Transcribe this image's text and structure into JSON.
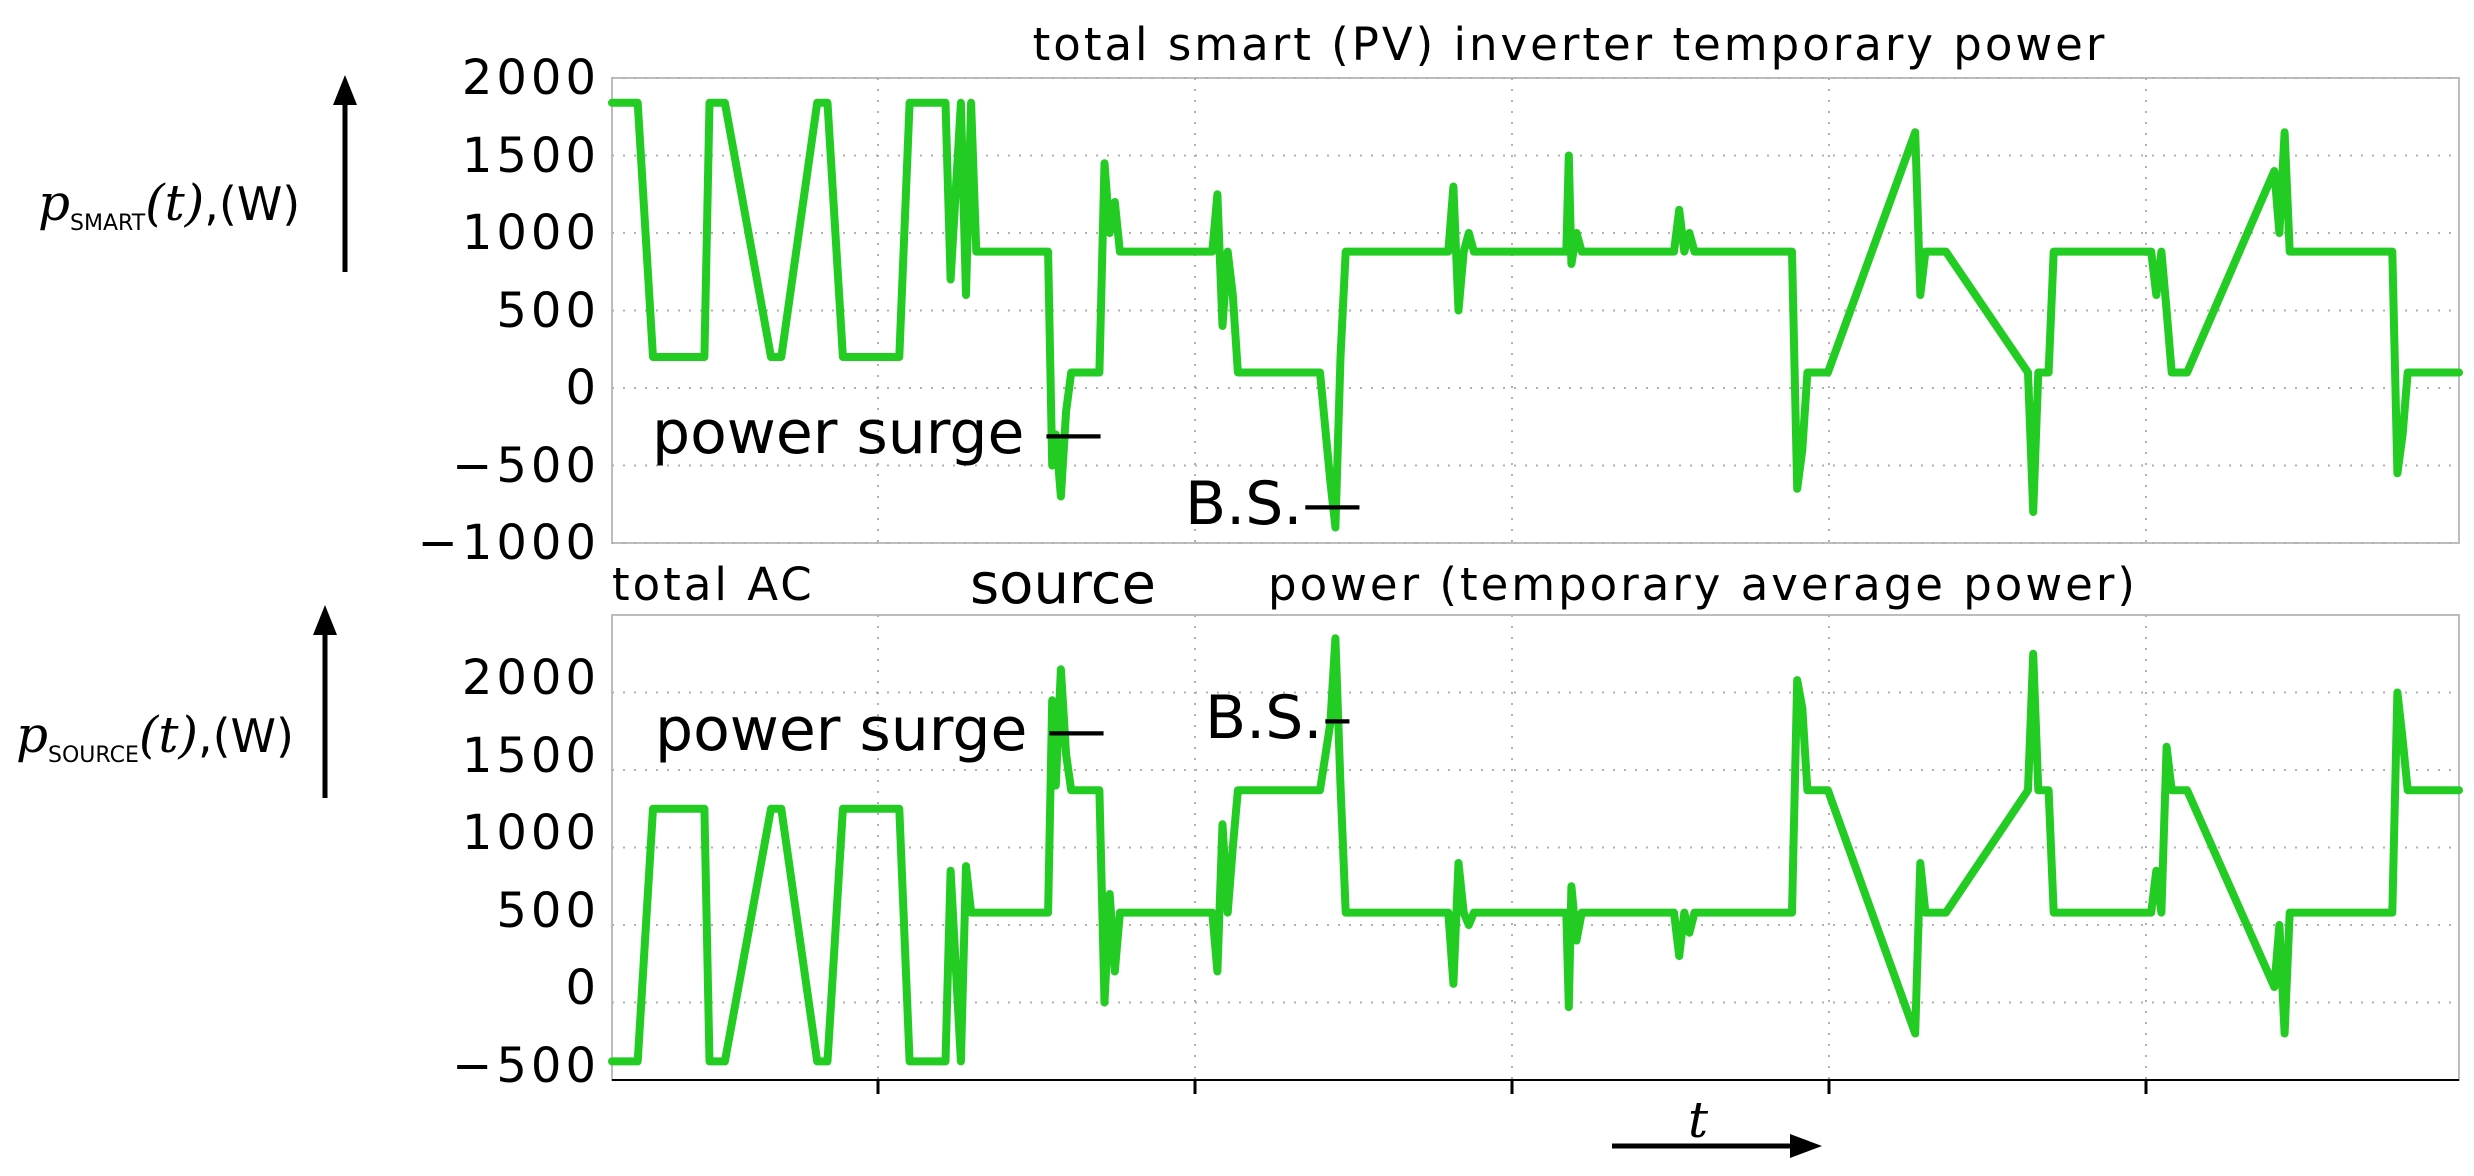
{
  "colors": {
    "trace": "#22cc22",
    "frame": "#bdbdbd",
    "grid": "#b0b0b0",
    "text": "#000000"
  },
  "chart_data": [
    {
      "type": "line",
      "title": "total smart (PV) inverter temporary power",
      "ylabel": {
        "symbol": "p",
        "subscript": "SMART",
        "arg": "(t)",
        "unit": ",(W)"
      },
      "ylim": [
        -1000,
        2000
      ],
      "yticks": [
        2000,
        1500,
        1000,
        500,
        0,
        -500,
        -1000
      ],
      "tick_labels": [
        "2000",
        "1500",
        "1000",
        "500",
        "0",
        "−500",
        "−1000"
      ],
      "xlim": [
        0,
        36
      ],
      "grid": true,
      "annotations": [
        {
          "text": "power surge —",
          "x": 6.9,
          "y": -300
        },
        {
          "text": "B.S.—",
          "x": 9.0,
          "y": -780
        }
      ],
      "series": [
        {
          "x": [
            0,
            0.5,
            0.8,
            1.8,
            1.9,
            2.2,
            3.1,
            3.3,
            4.0,
            4.2,
            4.5,
            5.6,
            5.8,
            6.5,
            6.6,
            6.8,
            6.9,
            7.0,
            7.1,
            7.25,
            7.4,
            7.6,
            8.5,
            8.58,
            8.65,
            8.75,
            8.85,
            8.95,
            9.1,
            9.5,
            9.6,
            9.7,
            9.8,
            9.9,
            10.0,
            10.1,
            11.7,
            11.8,
            11.9,
            12.0,
            12.1,
            12.2,
            12.3,
            13.8,
            14.0,
            14.1,
            14.2,
            14.3,
            14.5,
            14.7,
            16.3,
            16.4,
            16.5,
            16.6,
            16.7,
            16.8,
            17.0,
            18.6,
            18.65,
            18.7,
            18.8,
            18.9,
            19.1,
            20.7,
            20.8,
            20.9,
            21.0,
            21.1,
            21.2,
            21.4,
            23.0,
            23.1,
            23.2,
            23.3,
            23.4,
            23.5,
            23.7,
            25.4,
            25.5,
            25.6,
            25.7,
            25.8,
            26.0,
            27.6,
            27.7,
            27.8,
            27.9,
            28.0,
            28.1,
            28.2,
            30.0,
            30.1,
            30.2,
            30.3,
            30.4,
            30.5,
            30.7,
            32.4,
            32.5,
            32.6,
            32.7,
            32.8,
            33.0,
            34.7,
            34.8,
            34.9,
            35.0,
            35.1,
            35.2,
            35.4,
            36.0
          ],
          "y": [
            1840,
            1840,
            200,
            200,
            1840,
            1840,
            200,
            200,
            1840,
            1840,
            200,
            200,
            1840,
            1840,
            700,
            1840,
            600,
            1840,
            880,
            880,
            880,
            880,
            880,
            -500,
            -300,
            -700,
            -150,
            100,
            100,
            100,
            1450,
            1000,
            1200,
            880,
            880,
            880,
            880,
            1250,
            400,
            880,
            600,
            100,
            100,
            100,
            -600,
            -900,
            200,
            880,
            880,
            880,
            880,
            1300,
            500,
            880,
            1000,
            880,
            880,
            880,
            1500,
            800,
            1000,
            880,
            880,
            880,
            1150,
            880,
            1000,
            880,
            880,
            880,
            880,
            -650,
            -400,
            100,
            100,
            100,
            100,
            1650,
            600,
            880,
            880,
            880,
            880,
            100,
            -800,
            100,
            100,
            100,
            880,
            880,
            880,
            600,
            880,
            500,
            100,
            100,
            100,
            1400,
            1000,
            1650,
            880,
            880,
            880,
            880,
            -550,
            -300,
            100,
            100,
            100,
            100,
            100
          ],
          "note": "",
          "name": ""
        }
      ]
    },
    {
      "type": "line",
      "title_parts": [
        "total AC",
        "source",
        "power (temporary average power)"
      ],
      "ylabel": {
        "symbol": "p",
        "subscript": "SOURCE",
        "arg": "(t)",
        "unit": ",(W)"
      },
      "ylim": [
        -500,
        2500
      ],
      "yticks": [
        2000,
        1500,
        1000,
        500,
        0,
        -500
      ],
      "tick_labels": [
        "2000",
        "1500",
        "1000",
        "500",
        "0",
        "−500"
      ],
      "xlim": [
        0,
        36
      ],
      "grid": true,
      "xlabel": "t",
      "annotations": [
        {
          "text": "power surge —",
          "x": 6.9,
          "y": 1700
        },
        {
          "text": "B.S.–",
          "x": 9.0,
          "y": 1780
        }
      ],
      "series": [
        {
          "x": [
            0,
            0.5,
            0.8,
            1.8,
            1.9,
            2.2,
            3.1,
            3.3,
            4.0,
            4.2,
            4.5,
            5.6,
            5.8,
            6.5,
            6.6,
            6.8,
            6.9,
            7.0,
            7.1,
            7.25,
            7.4,
            7.6,
            8.5,
            8.58,
            8.65,
            8.75,
            8.85,
            8.95,
            9.1,
            9.5,
            9.6,
            9.7,
            9.8,
            9.9,
            10.0,
            10.1,
            11.7,
            11.8,
            11.9,
            12.0,
            12.1,
            12.2,
            12.3,
            13.8,
            14.0,
            14.1,
            14.2,
            14.3,
            14.5,
            14.7,
            16.3,
            16.4,
            16.5,
            16.6,
            16.7,
            16.8,
            17.0,
            18.6,
            18.65,
            18.7,
            18.8,
            18.9,
            19.1,
            20.7,
            20.8,
            20.9,
            21.0,
            21.1,
            21.2,
            21.4,
            23.0,
            23.1,
            23.2,
            23.3,
            23.4,
            23.5,
            23.7,
            25.4,
            25.5,
            25.6,
            25.7,
            25.8,
            26.0,
            27.6,
            27.7,
            27.8,
            27.9,
            28.0,
            28.1,
            28.2,
            30.0,
            30.1,
            30.2,
            30.3,
            30.4,
            30.5,
            30.7,
            32.4,
            32.5,
            32.6,
            32.7,
            32.8,
            33.0,
            34.7,
            34.8,
            34.9,
            35.0,
            35.1,
            35.2,
            35.4,
            36.0
          ],
          "y": [
            -380,
            -380,
            1250,
            1250,
            -380,
            -380,
            1250,
            1250,
            -380,
            -380,
            1250,
            1250,
            -380,
            -380,
            850,
            -380,
            880,
            580,
            580,
            580,
            580,
            580,
            580,
            1950,
            1400,
            2150,
            1600,
            1370,
            1370,
            1370,
            0,
            700,
            200,
            580,
            580,
            580,
            580,
            200,
            1150,
            580,
            1000,
            1370,
            1370,
            1370,
            1800,
            2350,
            1400,
            580,
            580,
            580,
            580,
            120,
            900,
            580,
            500,
            580,
            580,
            580,
            -30,
            750,
            400,
            580,
            580,
            580,
            300,
            580,
            450,
            580,
            580,
            580,
            580,
            2080,
            1900,
            1370,
            1370,
            1370,
            1370,
            -200,
            900,
            580,
            580,
            580,
            580,
            1370,
            2250,
            1370,
            1370,
            1370,
            580,
            580,
            580,
            850,
            580,
            1650,
            1370,
            1370,
            1370,
            100,
            500,
            -200,
            580,
            580,
            580,
            580,
            2000,
            1700,
            1370,
            1370,
            1370,
            1370,
            1370
          ],
          "note": "",
          "name": ""
        }
      ]
    }
  ]
}
